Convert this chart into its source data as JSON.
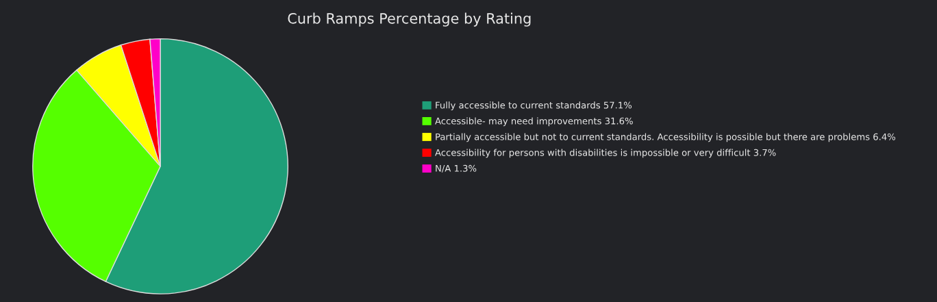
{
  "chart_data": {
    "type": "pie",
    "title": "Curb Ramps Percentage by Rating",
    "categories": [
      "Fully accessible to current standards",
      "Accessible- may need improvements",
      "Partially accessible but not to current standards. Accessibility is possible but there are problems",
      "Accessibility for persons with disabilities is impossible or very difficult",
      "N/A"
    ],
    "values": [
      57.1,
      31.6,
      6.4,
      3.7,
      1.3
    ],
    "value_labels": [
      "57.1%",
      "31.6%",
      "6.4%",
      "3.7%",
      "1.3%"
    ],
    "colors": [
      "#1e9e78",
      "#55ff00",
      "#ffff00",
      "#ff0000",
      "#ff00c8"
    ],
    "legend": "right"
  }
}
